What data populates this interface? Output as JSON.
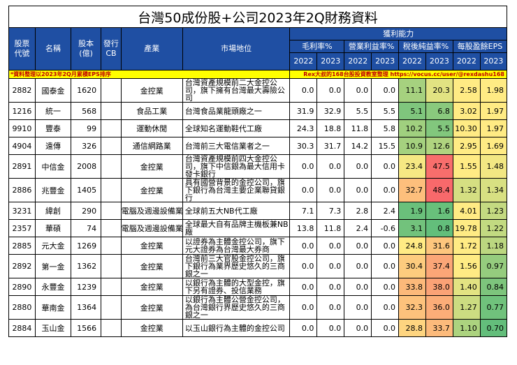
{
  "title": "台灣50成份股+公司2023年2Q財務資料",
  "group_header": "獲利能力",
  "headers": {
    "code": "股票代號",
    "name": "名稱",
    "capital": "股本(億)",
    "cb": "發行CB",
    "industry": "產業",
    "position": "市場地位",
    "gross": "毛利率%",
    "operating": "營業利益率%",
    "pretax": "稅後純益率%",
    "eps": "每股盈餘EPS"
  },
  "years": [
    "2022",
    "2023"
  ],
  "note_left": "*資料整理以2023年2Q月累積EPS排序",
  "note_right": "Rex大叔的168台股投資教室整理 https://vocus.cc/user/@rexdashu168",
  "rows": [
    {
      "code": "2882",
      "name": "國泰金",
      "capital": "1620",
      "cb": "",
      "industry": "金控業",
      "position": "台灣資產規模前二大金控公司，旗下擁有台灣最大壽險公司",
      "gross": [
        "0.0",
        "0.0"
      ],
      "op": [
        "0.0",
        "0.0"
      ],
      "net": [
        "11.1",
        "20.3"
      ],
      "eps": [
        "2.58",
        "1.98"
      ]
    },
    {
      "code": "1216",
      "name": "統一",
      "capital": "568",
      "cb": "",
      "industry": "食品工業",
      "position": "台灣食品業龍頭廠之一",
      "gross": [
        "31.9",
        "32.9"
      ],
      "op": [
        "5.5",
        "5.5"
      ],
      "net": [
        "5.1",
        "6.8"
      ],
      "eps": [
        "3.02",
        "1.97"
      ]
    },
    {
      "code": "9910",
      "name": "豐泰",
      "capital": "99",
      "cb": "",
      "industry": "運動休閒",
      "position": "全球知名運動鞋代工廠",
      "gross": [
        "24.3",
        "18.8"
      ],
      "op": [
        "11.8",
        "5.8"
      ],
      "net": [
        "10.2",
        "5.5"
      ],
      "eps": [
        "10.30",
        "1.97"
      ]
    },
    {
      "code": "4904",
      "name": "遠傳",
      "capital": "326",
      "cb": "",
      "industry": "通信網路業",
      "position": "台灣前三大電信業者之一",
      "gross": [
        "30.3",
        "31.7"
      ],
      "op": [
        "14.2",
        "15.5"
      ],
      "net": [
        "10.9",
        "12.6"
      ],
      "eps": [
        "2.95",
        "1.69"
      ]
    },
    {
      "code": "2891",
      "name": "中信金",
      "capital": "2008",
      "cb": "",
      "industry": "金控業",
      "position": "台灣資產規模前四大金控公司，旗下中信銀為最大信用卡發卡銀行",
      "gross": [
        "0.0",
        "0.0"
      ],
      "op": [
        "0.0",
        "0.0"
      ],
      "net": [
        "23.4",
        "47.5"
      ],
      "eps": [
        "1.55",
        "1.48"
      ]
    },
    {
      "code": "2886",
      "name": "兆豐金",
      "capital": "1405",
      "cb": "",
      "industry": "金控業",
      "position": "具有國營背景的金控公司，旗下銀行為台灣主要企業聯貸銀行",
      "gross": [
        "0.0",
        "0.0"
      ],
      "op": [
        "0.0",
        "0.0"
      ],
      "net": [
        "32.7",
        "48.4"
      ],
      "eps": [
        "1.32",
        "1.34"
      ]
    },
    {
      "code": "3231",
      "name": "緯創",
      "capital": "290",
      "cb": "",
      "industry": "電腦及週邊設備業",
      "position": "全球前五大NB代工廠",
      "gross": [
        "7.1",
        "7.3"
      ],
      "op": [
        "2.8",
        "2.4"
      ],
      "net": [
        "1.9",
        "1.6"
      ],
      "eps": [
        "4.01",
        "1.23"
      ]
    },
    {
      "code": "2357",
      "name": "華碩",
      "capital": "74",
      "cb": "",
      "industry": "電腦及週邊設備業",
      "position": "全球最大自有品牌主機板兼NB廠",
      "gross": [
        "13.8",
        "11.8"
      ],
      "op": [
        "2.4",
        "-0.6"
      ],
      "net": [
        "3.1",
        "0.8"
      ],
      "eps": [
        "19.78",
        "1.22"
      ]
    },
    {
      "code": "2885",
      "name": "元大金",
      "capital": "1269",
      "cb": "",
      "industry": "金控業",
      "position": "以證券為主體金控公司，旗下元大證券為台灣最大券商",
      "gross": [
        "0.0",
        "0.0"
      ],
      "op": [
        "0.0",
        "0.0"
      ],
      "net": [
        "24.8",
        "31.6"
      ],
      "eps": [
        "1.72",
        "1.18"
      ]
    },
    {
      "code": "2892",
      "name": "第一金",
      "capital": "1362",
      "cb": "",
      "industry": "金控業",
      "position": "台灣前三大官股金控公司，旗下銀行為業界歷史悠久的三商銀之一",
      "gross": [
        "0.0",
        "0.0"
      ],
      "op": [
        "0.0",
        "0.0"
      ],
      "net": [
        "30.4",
        "37.4"
      ],
      "eps": [
        "1.56",
        "0.97"
      ]
    },
    {
      "code": "2890",
      "name": "永豐金",
      "capital": "1239",
      "cb": "",
      "industry": "金控業",
      "position": "以銀行為主體的大型金控，旗下另有證券、投信業務",
      "gross": [
        "0.0",
        "0.0"
      ],
      "op": [
        "0.0",
        "0.0"
      ],
      "net": [
        "33.8",
        "38.0"
      ],
      "eps": [
        "1.40",
        "0.84"
      ]
    },
    {
      "code": "2880",
      "name": "華南金",
      "capital": "1364",
      "cb": "",
      "industry": "金控業",
      "position": "以銀行為主體公營金控公司，為台灣銀行界歷史悠久的三商銀之一",
      "gross": [
        "0.0",
        "0.0"
      ],
      "op": [
        "0.0",
        "0.0"
      ],
      "net": [
        "32.3",
        "36.0"
      ],
      "eps": [
        "1.27",
        "0.77"
      ]
    },
    {
      "code": "2884",
      "name": "玉山金",
      "capital": "1566",
      "cb": "",
      "industry": "金控業",
      "position": "以玉山銀行為主體的金控公司",
      "gross": [
        "0.0",
        "0.0"
      ],
      "op": [
        "0.0",
        "0.0"
      ],
      "net": [
        "28.8",
        "33.7"
      ],
      "eps": [
        "1.10",
        "0.70"
      ]
    }
  ],
  "colors": {
    "header_bg": "#1f4fa3",
    "note_bg": "#ffff00",
    "scale_low": "#63be7b",
    "scale_mid": "#ffeb84",
    "scale_high": "#f8696b"
  }
}
